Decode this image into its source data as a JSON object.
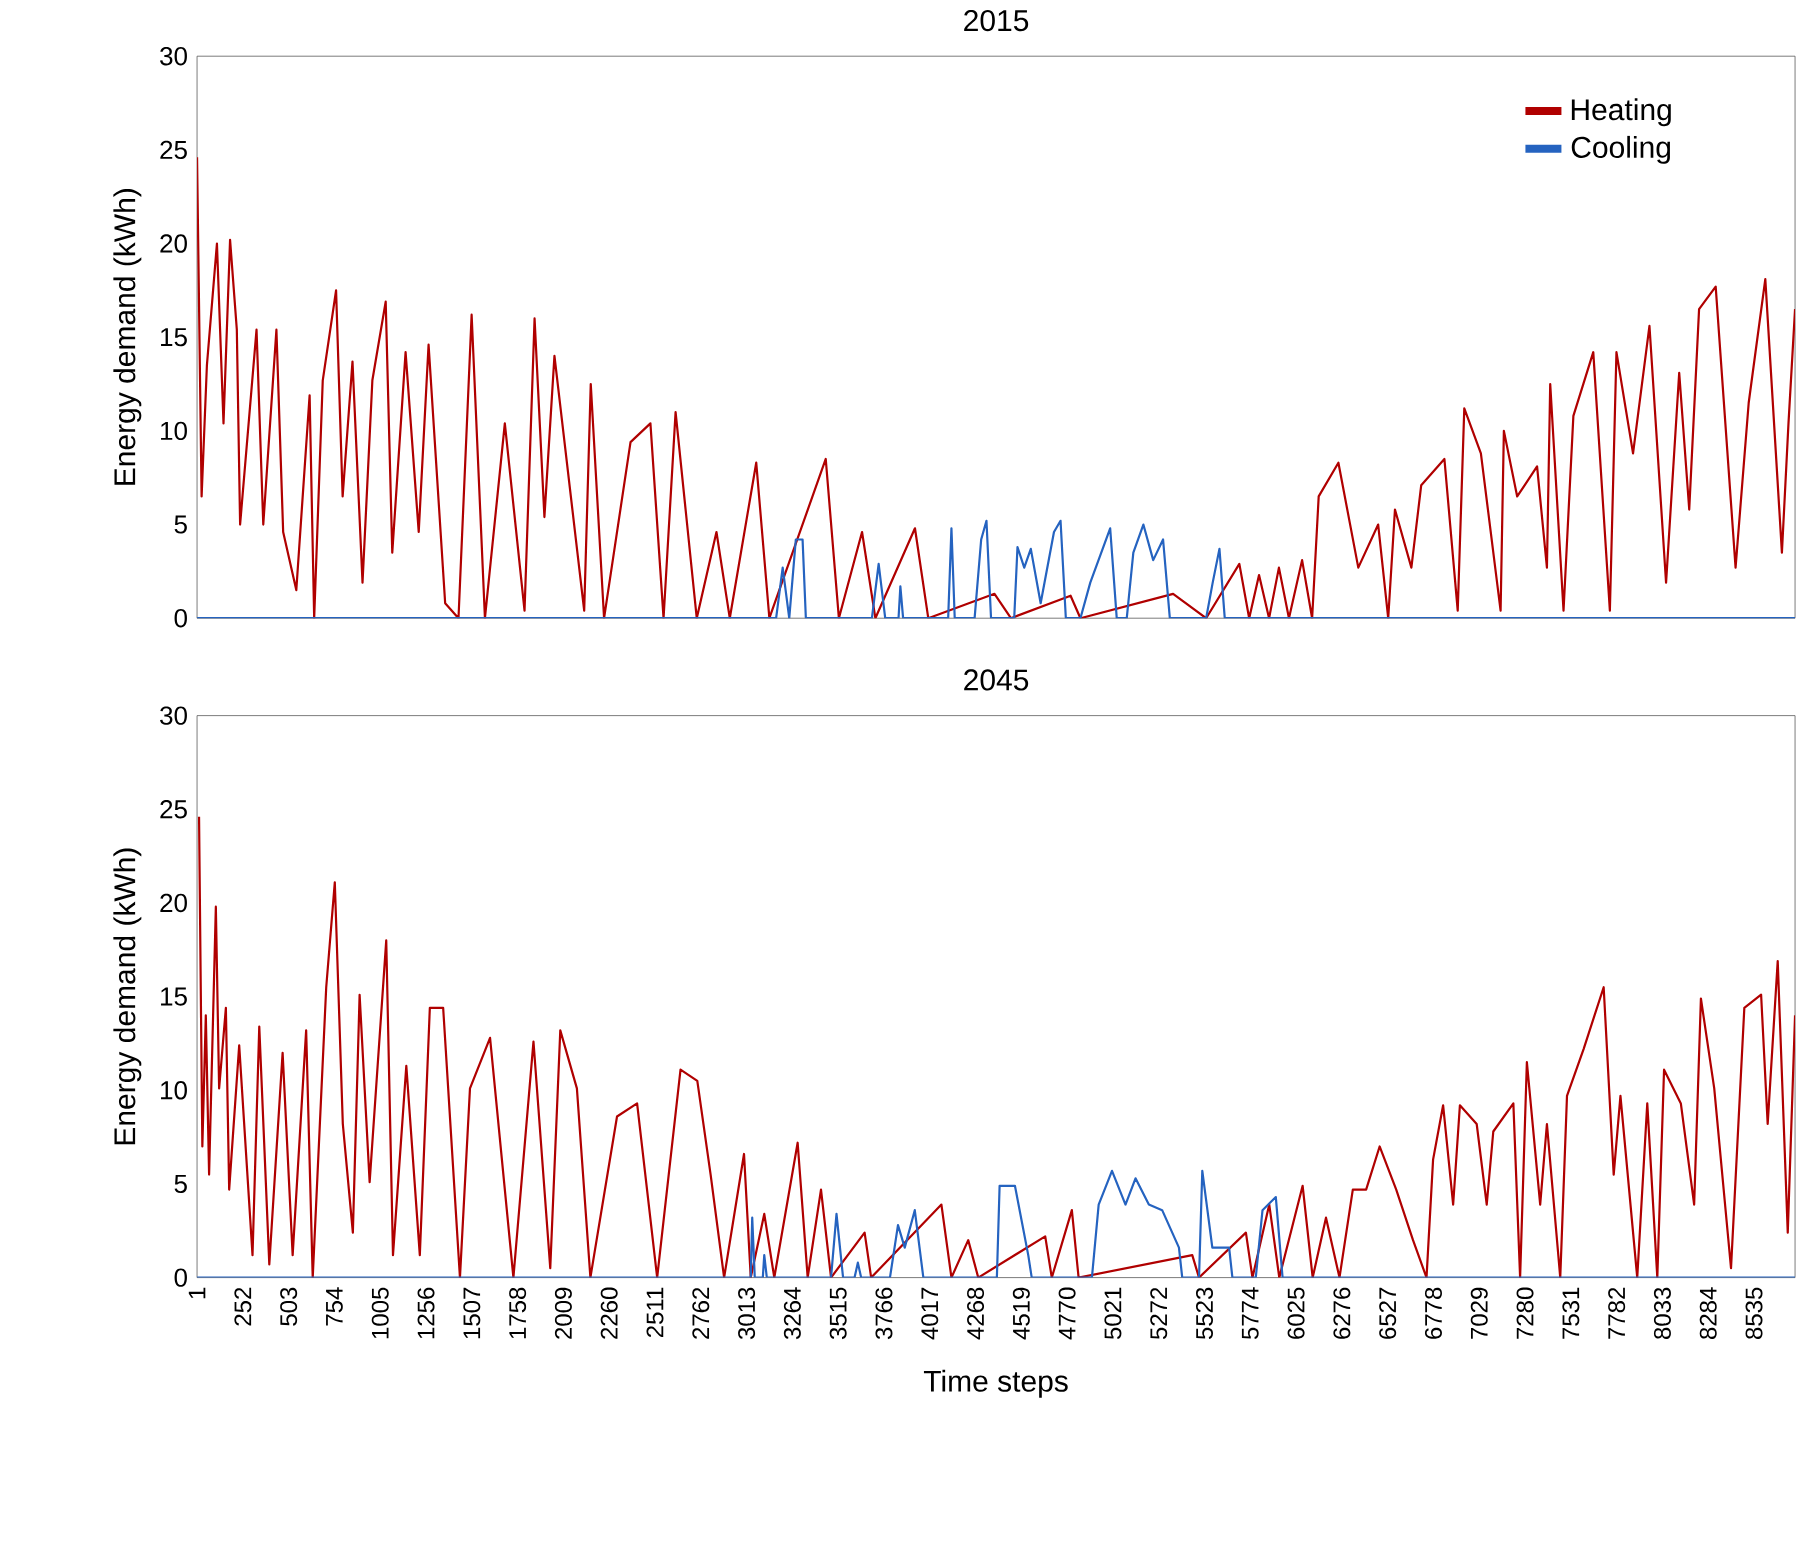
{
  "chart_data": [
    {
      "type": "line",
      "title": "2015",
      "ylabel": "Energy demand (kWh)",
      "xlim": [
        1,
        8760
      ],
      "ylim": [
        0,
        30
      ],
      "yticks": [
        0,
        5,
        10,
        15,
        20,
        25,
        30
      ],
      "xticks": [
        1,
        252,
        503,
        754,
        1005,
        1256,
        1507,
        1758,
        2009,
        2260,
        2511,
        2762,
        3013,
        3264,
        3515,
        3766,
        4017,
        4268,
        4519,
        4770,
        5021,
        5272,
        5523,
        5774,
        6025,
        6276,
        6527,
        6778,
        7029,
        7280,
        7531,
        7782,
        8033,
        8284,
        8535
      ],
      "tick_labels": "y",
      "legend": "top right",
      "grid": false,
      "marker": "none",
      "series": [
        {
          "name": "Heating",
          "color": "#b00000",
          "x": [
            1,
            26,
            55,
            110,
            146,
            182,
            219,
            237,
            327,
            364,
            436,
            473,
            545,
            618,
            643,
            690,
            763,
            799,
            853,
            908,
            962,
            1035,
            1071,
            1144,
            1216,
            1270,
            1361,
            1434,
            1506,
            1579,
            1688,
            1796,
            1851,
            1905,
            1960,
            2123,
            2159,
            2232,
            2377,
            2486,
            2558,
            2624,
            2740,
            2848,
            2921,
            3066,
            3138,
            3447,
            3519,
            3646,
            3719,
            3936,
            4009,
            4372,
            4462,
            4789,
            4843,
            5351,
            5532,
            5714,
            5768,
            5822,
            5877,
            5931,
            5986,
            6058,
            6113,
            6149,
            6257,
            6366,
            6475,
            6530,
            6567,
            6657,
            6711,
            6838,
            6911,
            6947,
            7038,
            7146,
            7164,
            7237,
            7346,
            7400,
            7418,
            7491,
            7545,
            7654,
            7745,
            7781,
            7872,
            7962,
            8053,
            8125,
            8180,
            8234,
            8325,
            8434,
            8506,
            8597,
            8688,
            8724,
            8760
          ],
          "values": [
            24.6,
            6.5,
            13.5,
            20.0,
            10.4,
            20.2,
            15.4,
            5.0,
            15.4,
            5.0,
            15.4,
            4.6,
            1.5,
            11.9,
            0,
            12.7,
            17.5,
            6.5,
            13.7,
            1.9,
            12.7,
            16.9,
            3.5,
            14.2,
            4.6,
            14.6,
            0.8,
            0,
            16.2,
            0,
            10.4,
            0.4,
            16.0,
            5.4,
            14.0,
            0.4,
            12.5,
            0,
            9.4,
            10.4,
            0,
            11.0,
            0,
            4.6,
            0,
            8.3,
            0,
            8.5,
            0,
            4.6,
            0,
            4.8,
            0,
            1.3,
            0,
            1.2,
            0,
            1.3,
            0,
            2.9,
            0,
            2.3,
            0,
            2.7,
            0,
            3.1,
            0,
            6.5,
            8.3,
            2.7,
            5.0,
            0,
            5.8,
            2.7,
            7.1,
            8.5,
            0.4,
            11.2,
            8.8,
            0.4,
            10.0,
            6.5,
            8.1,
            2.7,
            12.5,
            0.4,
            10.8,
            14.2,
            0.4,
            14.2,
            8.8,
            15.6,
            1.9,
            13.1,
            5.8,
            16.5,
            17.7,
            2.7,
            11.5,
            18.1,
            3.5,
            10.4,
            16.5
          ]
        },
        {
          "name": "Cooling",
          "color": "#2563c0",
          "x": [
            1,
            3175,
            3211,
            3247,
            3283,
            3320,
            3338,
            3700,
            3737,
            3773,
            3846,
            3856,
            3871,
            4118,
            4136,
            4154,
            4263,
            4299,
            4328,
            4353,
            4480,
            4498,
            4535,
            4571,
            4625,
            4698,
            4734,
            4763,
            4843,
            4897,
            5006,
            5042,
            5097,
            5133,
            5188,
            5242,
            5296,
            5333,
            5532,
            5568,
            5605,
            5634,
            8760
          ],
          "values": [
            0,
            0,
            2.7,
            0,
            4.2,
            4.2,
            0,
            0,
            2.9,
            0,
            0,
            1.7,
            0,
            0,
            4.8,
            0,
            0,
            4.2,
            5.2,
            0,
            0,
            3.8,
            2.7,
            3.7,
            0.8,
            4.6,
            5.2,
            0,
            0,
            1.9,
            4.8,
            0,
            0,
            3.5,
            5.0,
            3.1,
            4.2,
            0,
            0,
            1.9,
            3.7,
            0,
            0
          ]
        }
      ]
    },
    {
      "type": "line",
      "title": "2045",
      "ylabel": "Energy demand (kWh)",
      "xlabel": "Time steps",
      "xlim": [
        1,
        8760
      ],
      "ylim": [
        0,
        30
      ],
      "yticks": [
        0,
        5,
        10,
        15,
        20,
        25,
        30
      ],
      "xticks": [
        1,
        252,
        503,
        754,
        1005,
        1256,
        1507,
        1758,
        2009,
        2260,
        2511,
        2762,
        3013,
        3264,
        3515,
        3766,
        4017,
        4268,
        4519,
        4770,
        5021,
        5272,
        5523,
        5774,
        6025,
        6276,
        6527,
        6778,
        7029,
        7280,
        7531,
        7782,
        8033,
        8284,
        8535
      ],
      "legend": false,
      "grid": false,
      "marker": "none",
      "series": [
        {
          "color": "#b00000",
          "x": [
            12,
            30,
            49,
            67,
            104,
            122,
            159,
            177,
            232,
            305,
            342,
            397,
            470,
            525,
            599,
            635,
            709,
            756,
            800,
            855,
            892,
            947,
            1038,
            1075,
            1148,
            1222,
            1277,
            1350,
            1442,
            1497,
            1607,
            1735,
            1845,
            1937,
            1992,
            2083,
            2157,
            2303,
            2413,
            2523,
            2651,
            2743,
            2816,
            2890,
            2999,
            3036,
            3110,
            3165,
            3293,
            3348,
            3421,
            3476,
            3660,
            3696,
            4081,
            4136,
            4228,
            4283,
            4650,
            4686,
            4796,
            4833,
            5456,
            5493,
            5750,
            5786,
            5878,
            5933,
            6061,
            6116,
            6189,
            6263,
            6336,
            6409,
            6483,
            6574,
            6666,
            6740,
            6776,
            6831,
            6886,
            6923,
            7015,
            7070,
            7106,
            7216,
            7253,
            7290,
            7363,
            7400,
            7473,
            7510,
            7601,
            7711,
            7766,
            7803,
            7895,
            7950,
            8005,
            8042,
            8134,
            8207,
            8244,
            8317,
            8409,
            8482,
            8574,
            8610,
            8665,
            8720,
            8760
          ],
          "values": [
            24.6,
            7.0,
            14.0,
            5.5,
            19.8,
            10.1,
            14.4,
            4.7,
            12.4,
            1.2,
            13.4,
            0.7,
            12.0,
            1.2,
            13.2,
            0,
            15.5,
            21.1,
            8.2,
            2.4,
            15.1,
            5.1,
            18.0,
            1.2,
            11.3,
            1.2,
            14.4,
            14.4,
            0,
            10.1,
            12.8,
            0,
            12.6,
            0.5,
            13.2,
            10.1,
            0,
            8.6,
            9.3,
            0,
            11.1,
            10.5,
            5.5,
            0,
            6.6,
            0,
            3.4,
            0,
            7.2,
            0,
            4.7,
            0,
            2.4,
            0,
            3.9,
            0,
            2.0,
            0,
            2.2,
            0,
            3.6,
            0,
            1.2,
            0,
            2.4,
            0,
            3.9,
            0,
            4.9,
            0,
            3.2,
            0,
            4.7,
            4.7,
            7.0,
            4.7,
            2.0,
            0,
            6.3,
            9.2,
            3.9,
            9.2,
            8.2,
            3.9,
            7.8,
            9.3,
            0,
            11.5,
            3.9,
            8.2,
            0,
            9.7,
            12.2,
            15.5,
            5.5,
            9.7,
            0,
            9.3,
            0,
            11.1,
            9.3,
            3.9,
            14.9,
            10.1,
            0.5,
            14.4,
            15.1,
            8.2,
            16.9,
            2.4,
            14.0
          ]
        },
        {
          "color": "#2563c0",
          "x": [
            1,
            3036,
            3044,
            3058,
            3102,
            3110,
            3124,
            3476,
            3506,
            3542,
            3605,
            3623,
            3641,
            3799,
            3843,
            3880,
            3935,
            3982,
            4385,
            4400,
            4484,
            4557,
            4576,
            4906,
            4943,
            5016,
            5090,
            5145,
            5218,
            5291,
            5383,
            5401,
            5493,
            5511,
            5566,
            5658,
            5676,
            5804,
            5841,
            5914,
            5951,
            8760
          ],
          "values": [
            0,
            0,
            3.2,
            0,
            0,
            1.2,
            0,
            0,
            3.4,
            0,
            0,
            0.8,
            0,
            0,
            2.8,
            1.6,
            3.6,
            0,
            0,
            4.9,
            4.9,
            1.2,
            0,
            0,
            3.9,
            5.7,
            3.9,
            5.3,
            3.9,
            3.6,
            1.6,
            0,
            0,
            5.7,
            1.6,
            1.6,
            0,
            0,
            3.6,
            4.3,
            0,
            0
          ]
        }
      ]
    }
  ]
}
